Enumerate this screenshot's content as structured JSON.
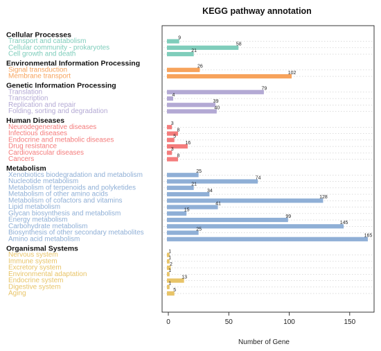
{
  "chart_data": {
    "type": "bar",
    "orientation": "horizontal",
    "title": "KEGG pathway annotation",
    "xlabel": "Number of Gene",
    "xlim": [
      0,
      170
    ],
    "xticks": [
      0,
      50,
      100,
      150
    ],
    "grid": true,
    "groups": [
      {
        "name": "Cellular Processes",
        "color": "#7fcdbb",
        "items": [
          {
            "label": "Transport and catabolism",
            "value": 9
          },
          {
            "label": "Cellular community - prokaryotes",
            "value": 58
          },
          {
            "label": "Cell growth and death",
            "value": 21
          }
        ]
      },
      {
        "name": "Environmental Information Processing",
        "color": "#f7a35c",
        "items": [
          {
            "label": "Signal transduction",
            "value": 26
          },
          {
            "label": "Membrane transport",
            "value": 102
          }
        ]
      },
      {
        "name": "Genetic Information Processing",
        "color": "#b3a9d4",
        "items": [
          {
            "label": "Translation",
            "value": 79
          },
          {
            "label": "Transcription",
            "value": 4
          },
          {
            "label": "Replication and repair",
            "value": 39
          },
          {
            "label": "Folding, sorting and degradation",
            "value": 40
          }
        ]
      },
      {
        "name": "Human Diseases",
        "color": "#f47c7c",
        "items": [
          {
            "label": "Neurodegenerative diseases",
            "value": 3
          },
          {
            "label": "Infectious diseases",
            "value": 8
          },
          {
            "label": "Endocrine and metabolic diseases",
            "value": 5
          },
          {
            "label": "Drug resistance",
            "value": 16
          },
          {
            "label": "Cardiovascular diseases",
            "value": 3
          },
          {
            "label": "Cancers",
            "value": 8
          }
        ]
      },
      {
        "name": "Metabolism",
        "color": "#8fafd6",
        "items": [
          {
            "label": "Xenobiotics biodegradation and metabolism",
            "value": 25
          },
          {
            "label": "Nucleotide metabolism",
            "value": 74
          },
          {
            "label": "Metabolism of terpenoids and polyketides",
            "value": 21
          },
          {
            "label": "Metabolism of other amino acids",
            "value": 34
          },
          {
            "label": "Metabolism of cofactors and vitamins",
            "value": 128
          },
          {
            "label": "Lipid metabolism",
            "value": 41
          },
          {
            "label": "Glycan biosynthesis and metabolism",
            "value": 15
          },
          {
            "label": "Energy metabolism",
            "value": 99
          },
          {
            "label": "Carbohydrate metabolism",
            "value": 145
          },
          {
            "label": "Biosynthesis of other secondary metabolites",
            "value": 25
          },
          {
            "label": "Amino acid metabolism",
            "value": 165
          }
        ]
      },
      {
        "name": "Organismal Systems",
        "color": "#e8c468",
        "items": [
          {
            "label": "Nervous system",
            "value": 1
          },
          {
            "label": "Immune system",
            "value": 1
          },
          {
            "label": "Excretory system",
            "value": 2
          },
          {
            "label": "Environmental adaptation",
            "value": 1
          },
          {
            "label": "Endocrine system",
            "value": 13
          },
          {
            "label": "Digestive system",
            "value": 1
          },
          {
            "label": "Aging",
            "value": 5
          }
        ]
      }
    ]
  }
}
